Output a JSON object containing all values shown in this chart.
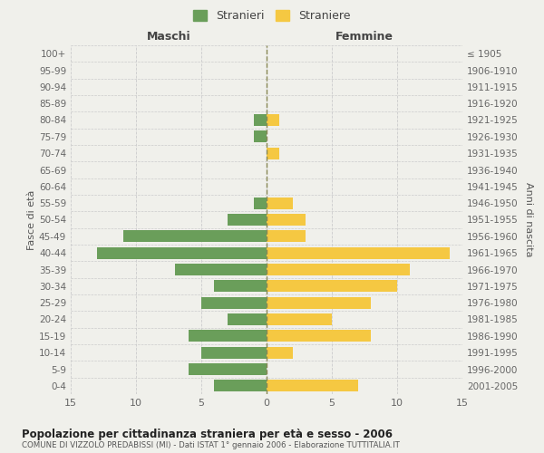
{
  "age_groups": [
    "100+",
    "95-99",
    "90-94",
    "85-89",
    "80-84",
    "75-79",
    "70-74",
    "65-69",
    "60-64",
    "55-59",
    "50-54",
    "45-49",
    "40-44",
    "35-39",
    "30-34",
    "25-29",
    "20-24",
    "15-19",
    "10-14",
    "5-9",
    "0-4"
  ],
  "birth_years": [
    "≤ 1905",
    "1906-1910",
    "1911-1915",
    "1916-1920",
    "1921-1925",
    "1926-1930",
    "1931-1935",
    "1936-1940",
    "1941-1945",
    "1946-1950",
    "1951-1955",
    "1956-1960",
    "1961-1965",
    "1966-1970",
    "1971-1975",
    "1976-1980",
    "1981-1985",
    "1986-1990",
    "1991-1995",
    "1996-2000",
    "2001-2005"
  ],
  "maschi": [
    0,
    0,
    0,
    0,
    1,
    1,
    0,
    0,
    0,
    1,
    3,
    11,
    13,
    7,
    4,
    5,
    3,
    6,
    5,
    6,
    4
  ],
  "femmine": [
    0,
    0,
    0,
    0,
    1,
    0,
    1,
    0,
    0,
    2,
    3,
    3,
    14,
    11,
    10,
    8,
    5,
    8,
    2,
    0,
    7
  ],
  "male_color": "#6a9e5a",
  "female_color": "#f5c842",
  "bg_color": "#f0f0eb",
  "grid_color": "#cccccc",
  "title": "Popolazione per cittadinanza straniera per età e sesso - 2006",
  "subtitle": "COMUNE DI VIZZOLO PREDABISSI (MI) - Dati ISTAT 1° gennaio 2006 - Elaborazione TUTTITALIA.IT",
  "xlabel_left": "Maschi",
  "xlabel_right": "Femmine",
  "ylabel_left": "Fasce di età",
  "ylabel_right": "Anni di nascita",
  "legend_male": "Stranieri",
  "legend_female": "Straniere",
  "xlim": 15
}
